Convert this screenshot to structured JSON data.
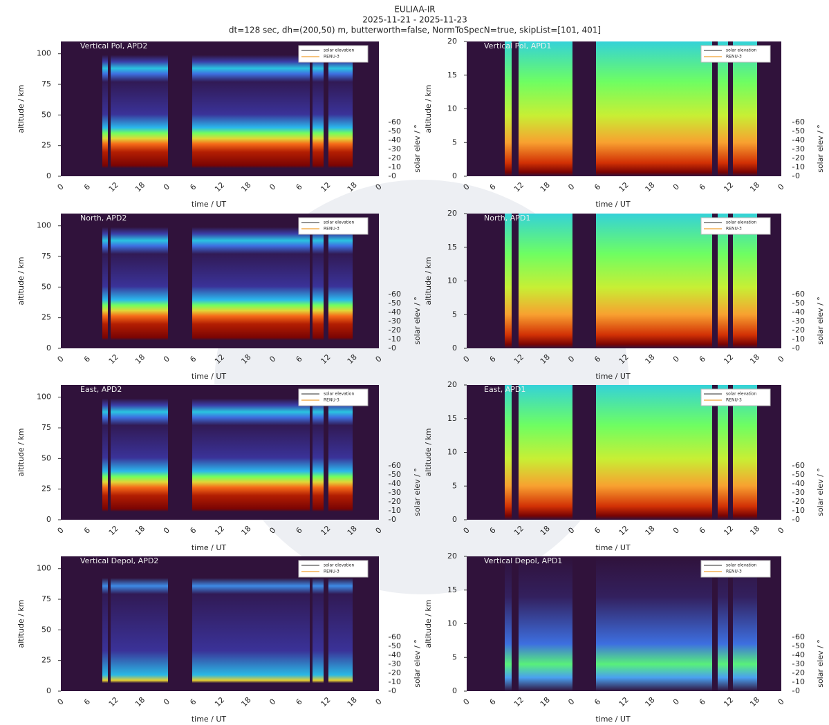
{
  "header": {
    "title": "EULIAA-IR",
    "dates": "2025-11-21 - 2025-11-23",
    "settings": "dt=128 sec, dh=(200,50) m, butterworth=false, NormToSpecN=true, skipList=[101, 401]"
  },
  "chart_data": [
    {
      "type": "heatmap",
      "title": "Vertical Pol, APD2",
      "ylabel": "altitude / km",
      "xlabel": "time / UT",
      "y2label": "solar elev / °",
      "ylim": [
        0,
        110
      ],
      "yticks": [
        0,
        25,
        50,
        75,
        100
      ],
      "y2lim": [
        0,
        150
      ],
      "y2ticks": [
        0,
        10,
        20,
        30,
        40,
        50,
        60
      ],
      "categories": [
        0,
        6,
        12,
        18,
        0,
        6,
        12,
        18,
        0,
        6,
        12,
        18,
        0
      ],
      "legend": [
        "solar elevation",
        "RENU-3"
      ],
      "legend_colors": [
        "#555555",
        "#f0a030"
      ]
    },
    {
      "type": "heatmap",
      "title": "Vertical Pol, APD1",
      "ylabel": "altitude / km",
      "xlabel": "time / UT",
      "y2label": "solar elev / °",
      "ylim": [
        0,
        20
      ],
      "yticks": [
        0,
        5,
        10,
        15,
        20
      ],
      "y2lim": [
        0,
        150
      ],
      "y2ticks": [
        0,
        10,
        20,
        30,
        40,
        50,
        60
      ],
      "categories": [
        0,
        6,
        12,
        18,
        0,
        6,
        12,
        18,
        0,
        6,
        12,
        18,
        0
      ],
      "legend": [
        "solar elevation",
        "RENU-3"
      ],
      "legend_colors": [
        "#555555",
        "#f0a030"
      ]
    },
    {
      "type": "heatmap",
      "title": "North, APD2",
      "ylabel": "altitude / km",
      "xlabel": "time / UT",
      "y2label": "solar elev / °",
      "ylim": [
        0,
        110
      ],
      "yticks": [
        0,
        25,
        50,
        75,
        100
      ],
      "y2lim": [
        0,
        150
      ],
      "y2ticks": [
        0,
        10,
        20,
        30,
        40,
        50,
        60
      ],
      "categories": [
        0,
        6,
        12,
        18,
        0,
        6,
        12,
        18,
        0,
        6,
        12,
        18,
        0
      ],
      "legend": [
        "solar elevation",
        "RENU-3"
      ],
      "legend_colors": [
        "#555555",
        "#f0a030"
      ]
    },
    {
      "type": "heatmap",
      "title": "North, APD1",
      "ylabel": "altitude / km",
      "xlabel": "time / UT",
      "y2label": "solar elev / °",
      "ylim": [
        0,
        20
      ],
      "yticks": [
        0,
        5,
        10,
        15,
        20
      ],
      "y2lim": [
        0,
        150
      ],
      "y2ticks": [
        0,
        10,
        20,
        30,
        40,
        50,
        60
      ],
      "categories": [
        0,
        6,
        12,
        18,
        0,
        6,
        12,
        18,
        0,
        6,
        12,
        18,
        0
      ],
      "legend": [
        "solar elevation",
        "RENU-3"
      ],
      "legend_colors": [
        "#555555",
        "#f0a030"
      ]
    },
    {
      "type": "heatmap",
      "title": "East, APD2",
      "ylabel": "altitude / km",
      "xlabel": "time / UT",
      "y2label": "solar elev / °",
      "ylim": [
        0,
        110
      ],
      "yticks": [
        0,
        25,
        50,
        75,
        100
      ],
      "y2lim": [
        0,
        150
      ],
      "y2ticks": [
        0,
        10,
        20,
        30,
        40,
        50,
        60
      ],
      "categories": [
        0,
        6,
        12,
        18,
        0,
        6,
        12,
        18,
        0,
        6,
        12,
        18,
        0
      ],
      "legend": [
        "solar elevation",
        "RENU-3"
      ],
      "legend_colors": [
        "#555555",
        "#f0a030"
      ]
    },
    {
      "type": "heatmap",
      "title": "East, APD1",
      "ylabel": "altitude / km",
      "xlabel": "time / UT",
      "y2label": "solar elev / °",
      "ylim": [
        0,
        20
      ],
      "yticks": [
        0,
        5,
        10,
        15,
        20
      ],
      "y2lim": [
        0,
        150
      ],
      "y2ticks": [
        0,
        10,
        20,
        30,
        40,
        50,
        60
      ],
      "categories": [
        0,
        6,
        12,
        18,
        0,
        6,
        12,
        18,
        0,
        6,
        12,
        18,
        0
      ],
      "legend": [
        "solar elevation",
        "RENU-3"
      ],
      "legend_colors": [
        "#555555",
        "#f0a030"
      ]
    },
    {
      "type": "heatmap",
      "title": "Vertical Depol, APD2",
      "ylabel": "altitude / km",
      "xlabel": "time / UT",
      "y2label": "solar elev / °",
      "ylim": [
        0,
        110
      ],
      "yticks": [
        0,
        25,
        50,
        75,
        100
      ],
      "y2lim": [
        0,
        150
      ],
      "y2ticks": [
        0,
        10,
        20,
        30,
        40,
        50,
        60
      ],
      "categories": [
        0,
        6,
        12,
        18,
        0,
        6,
        12,
        18,
        0,
        6,
        12,
        18,
        0
      ],
      "legend": [
        "solar elevation",
        "RENU-3"
      ],
      "legend_colors": [
        "#555555",
        "#f0a030"
      ]
    },
    {
      "type": "heatmap",
      "title": "Vertical Depol, APD1",
      "ylabel": "altitude / km",
      "xlabel": "time / UT",
      "y2label": "solar elev / °",
      "ylim": [
        0,
        20
      ],
      "yticks": [
        0,
        5,
        10,
        15,
        20
      ],
      "y2lim": [
        0,
        150
      ],
      "y2ticks": [
        0,
        10,
        20,
        30,
        40,
        50,
        60
      ],
      "categories": [
        0,
        6,
        12,
        18,
        0,
        6,
        12,
        18,
        0,
        6,
        12,
        18,
        0
      ],
      "legend": [
        "solar elevation",
        "RENU-3"
      ],
      "legend_colors": [
        "#555555",
        "#f0a030"
      ]
    }
  ]
}
